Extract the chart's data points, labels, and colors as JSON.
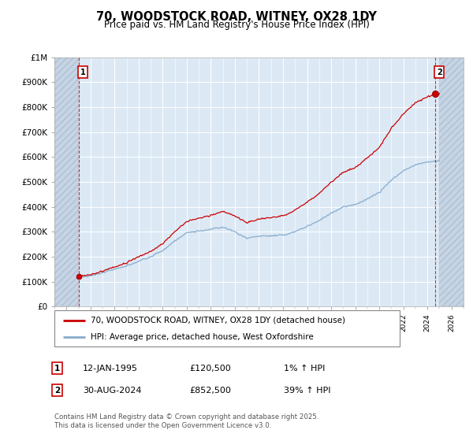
{
  "title": "70, WOODSTOCK ROAD, WITNEY, OX28 1DY",
  "subtitle": "Price paid vs. HM Land Registry's House Price Index (HPI)",
  "legend_line1": "70, WOODSTOCK ROAD, WITNEY, OX28 1DY (detached house)",
  "legend_line2": "HPI: Average price, detached house, West Oxfordshire",
  "point1_date": "12-JAN-1995",
  "point1_price": "£120,500",
  "point1_hpi": "1% ↑ HPI",
  "point2_date": "30-AUG-2024",
  "point2_price": "£852,500",
  "point2_hpi": "39% ↑ HPI",
  "footer": "Contains HM Land Registry data © Crown copyright and database right 2025.\nThis data is licensed under the Open Government Licence v3.0.",
  "property_color": "#cc0000",
  "hpi_color": "#88aacc",
  "plot_bg": "#dce9f5",
  "grid_color": "#ffffff",
  "ylim": [
    0,
    1000000
  ],
  "xlim_year": [
    1993,
    2027
  ],
  "point1_year": 1995.04,
  "point1_value": 120500,
  "point2_year": 2024.66,
  "point2_value": 852500
}
